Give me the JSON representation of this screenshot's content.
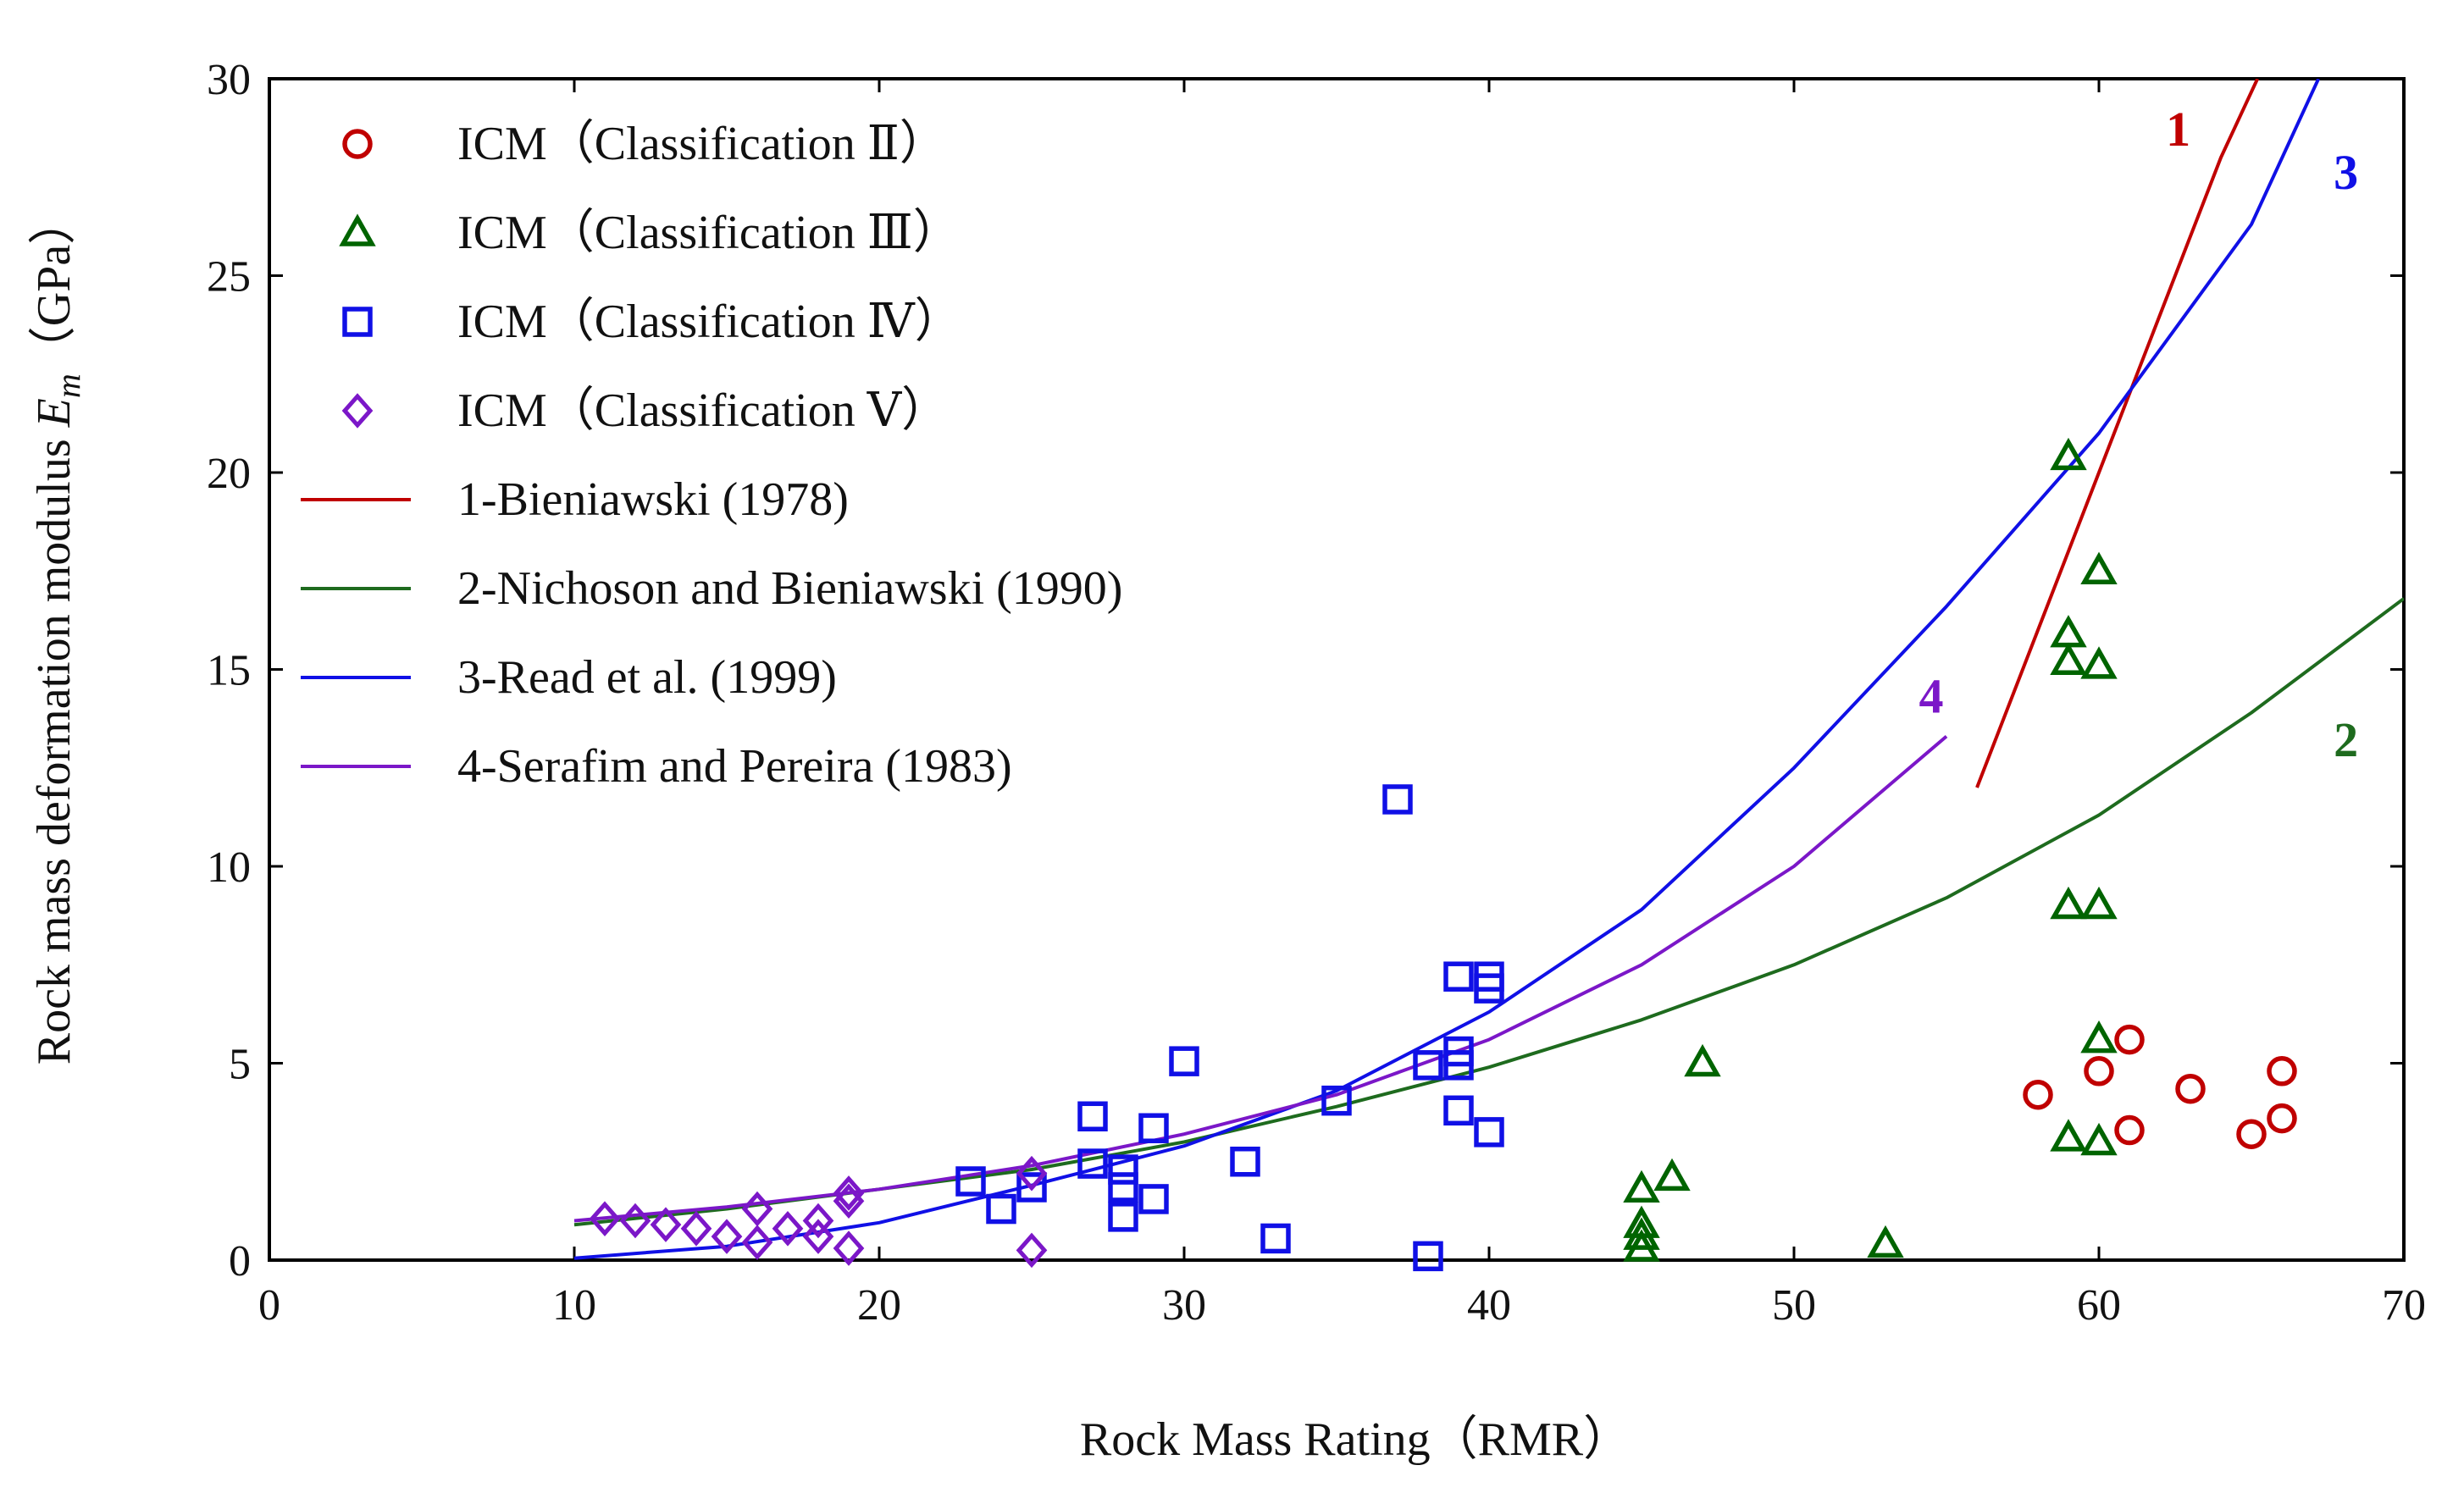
{
  "chart_data": {
    "type": "scatter",
    "xlabel": "Rock Mass Rating（RMR）",
    "ylabel_prefix": "Rock mass deformation modulus ",
    "ylabel_symbol": "E",
    "ylabel_subscript": "m",
    "ylabel_unit": "（GPa）",
    "xlim": [
      0,
      70
    ],
    "ylim": [
      0,
      30
    ],
    "xticks": [
      0,
      10,
      20,
      30,
      40,
      50,
      60,
      70
    ],
    "yticks": [
      0,
      5,
      10,
      15,
      20,
      25,
      30
    ],
    "grid": false,
    "legend_position": "top-left",
    "colors": {
      "class2": "#c00000",
      "class3": "#006400",
      "class4": "#1010e6",
      "class5": "#7b17c8",
      "curve1": "#c00000",
      "curve2": "#1e6b1e",
      "curve3": "#1010e6",
      "curve4": "#7b17c8"
    },
    "scatter_series": [
      {
        "id": "class2",
        "name": "ICM（Classification Ⅱ）",
        "marker": "circle",
        "points": [
          [
            58,
            4.2
          ],
          [
            60,
            4.8
          ],
          [
            61,
            5.6
          ],
          [
            61,
            3.3
          ],
          [
            63,
            4.35
          ],
          [
            65,
            3.2
          ],
          [
            66,
            4.8
          ],
          [
            66,
            3.6
          ]
        ]
      },
      {
        "id": "class3",
        "name": "ICM（Classification Ⅲ）",
        "marker": "triangle",
        "points": [
          [
            59,
            20.4
          ],
          [
            60,
            17.5
          ],
          [
            59,
            15.9
          ],
          [
            59,
            15.2
          ],
          [
            60,
            15.1
          ],
          [
            59,
            9.0
          ],
          [
            60,
            9.0
          ],
          [
            60,
            5.6
          ],
          [
            59,
            3.1
          ],
          [
            60,
            3.0
          ],
          [
            47,
            5.0
          ],
          [
            46,
            2.1
          ],
          [
            45,
            1.8
          ],
          [
            45,
            0.9
          ],
          [
            45,
            0.6
          ],
          [
            45,
            0.3
          ],
          [
            53,
            0.4
          ]
        ]
      },
      {
        "id": "class4",
        "name": "ICM（Classification Ⅳ）",
        "marker": "square",
        "points": [
          [
            37,
            11.7
          ],
          [
            39,
            7.2
          ],
          [
            40,
            7.2
          ],
          [
            40,
            6.9
          ],
          [
            39,
            5.3
          ],
          [
            39,
            4.95
          ],
          [
            38,
            4.95
          ],
          [
            39,
            3.8
          ],
          [
            40,
            3.25
          ],
          [
            35,
            4.05
          ],
          [
            30,
            5.05
          ],
          [
            29,
            3.35
          ],
          [
            27,
            3.65
          ],
          [
            27,
            2.45
          ],
          [
            28,
            2.3
          ],
          [
            28,
            1.85
          ],
          [
            29,
            1.55
          ],
          [
            28,
            1.1
          ],
          [
            32,
            2.5
          ],
          [
            23,
            2.0
          ],
          [
            25,
            1.85
          ],
          [
            24,
            1.3
          ],
          [
            33,
            0.55
          ],
          [
            38,
            0.1
          ]
        ]
      },
      {
        "id": "class5",
        "name": "ICM（Classification Ⅴ）",
        "marker": "diamond",
        "points": [
          [
            11,
            1.05
          ],
          [
            12,
            1.0
          ],
          [
            13,
            0.9
          ],
          [
            14,
            0.8
          ],
          [
            15,
            0.6
          ],
          [
            16,
            1.3
          ],
          [
            16,
            0.45
          ],
          [
            17,
            0.8
          ],
          [
            18,
            1.0
          ],
          [
            18,
            0.6
          ],
          [
            19,
            1.7
          ],
          [
            19,
            1.5
          ],
          [
            19,
            0.3
          ],
          [
            25,
            2.2
          ],
          [
            25,
            0.25
          ]
        ]
      }
    ],
    "line_series": [
      {
        "id": "curve1",
        "name": "1-Bieniawski (1978)",
        "label": "1",
        "label_at": [
          62.6,
          28.3
        ],
        "x": [
          56,
          58,
          60,
          62,
          64,
          65.2
        ],
        "y": [
          12.0,
          16.0,
          20.0,
          24.0,
          28.0,
          30.0
        ]
      },
      {
        "id": "curve2",
        "name": "2-Nichoson and Bieniawski (1990)",
        "label": "2",
        "label_at": [
          68.1,
          12.8
        ],
        "x": [
          10,
          15,
          20,
          25,
          30,
          35,
          40,
          45,
          50,
          55,
          60,
          65,
          70
        ],
        "y": [
          0.9,
          1.3,
          1.8,
          2.3,
          3.0,
          3.9,
          4.9,
          6.1,
          7.5,
          9.2,
          11.3,
          13.9,
          16.8
        ]
      },
      {
        "id": "curve3",
        "name": "3-Read et al. (1999)",
        "label": "3",
        "label_at": [
          68.1,
          27.2
        ],
        "x": [
          10,
          15,
          20,
          25,
          30,
          35,
          40,
          45,
          50,
          55,
          60,
          65,
          67.2
        ],
        "y": [
          0.05,
          0.35,
          0.95,
          1.9,
          2.9,
          4.3,
          6.3,
          8.9,
          12.5,
          16.6,
          21.0,
          26.3,
          30.0
        ]
      },
      {
        "id": "curve4",
        "name": "4-Serafim and Pereira (1983)",
        "label": "4",
        "label_at": [
          54.5,
          13.9
        ],
        "x": [
          10,
          15,
          20,
          25,
          30,
          35,
          40,
          45,
          50,
          55
        ],
        "y": [
          1.0,
          1.35,
          1.8,
          2.4,
          3.2,
          4.2,
          5.6,
          7.5,
          10.0,
          13.3
        ]
      }
    ]
  }
}
